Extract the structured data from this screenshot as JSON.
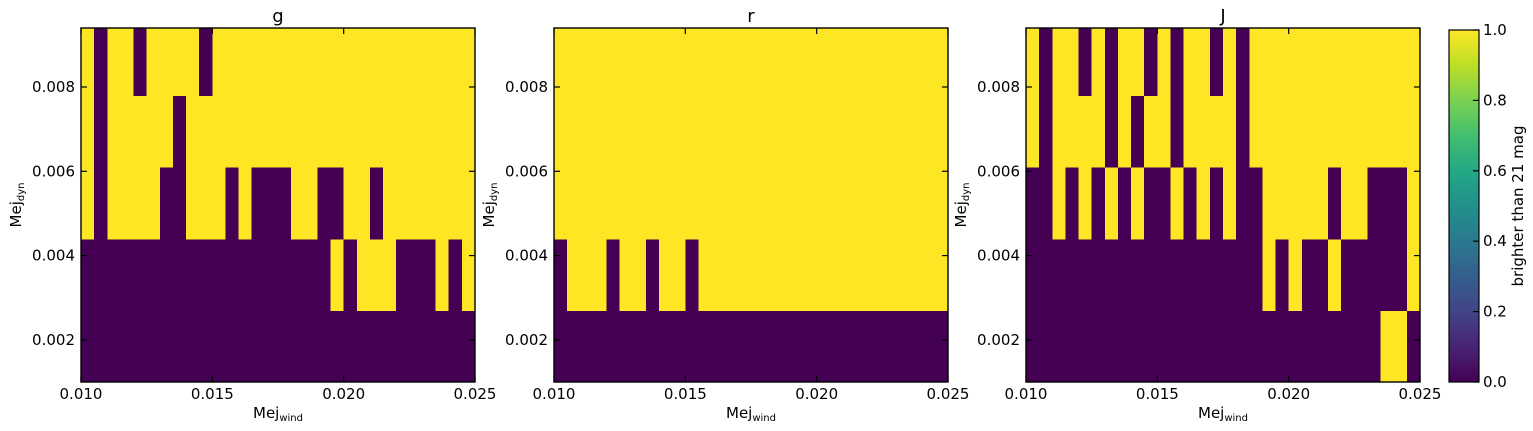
{
  "colors": {
    "zero": "#440154",
    "one": "#fde725"
  },
  "colorbar": {
    "label": "brighter than 21 mag",
    "ticks": [
      "0.0",
      "0.2",
      "0.4",
      "0.6",
      "0.8",
      "1.0"
    ],
    "range": [
      0,
      1
    ],
    "colormap": "viridis"
  },
  "chart_data": [
    {
      "type": "heatmap",
      "title": "g",
      "xlabel": "Mej",
      "xlabel_sub": "wind",
      "ylabel": "Mej",
      "ylabel_sub": "dyn",
      "xlim": [
        0.01,
        0.025
      ],
      "ylim": [
        0.001,
        0.0094
      ],
      "x_ticks": [
        "0.010",
        "0.015",
        "0.020",
        "0.025"
      ],
      "y_ticks": [
        "0.002",
        "0.004",
        "0.006",
        "0.008"
      ],
      "x_bins": 30,
      "row_y_edges": [
        0.001,
        0.0027,
        0.0044,
        0.0061,
        0.0078,
        0.0094
      ],
      "rows": [
        "000000000000000000000000000000",
        "000000000000000000010111000101",
        "101111001110100011001101111111",
        "101111101111111111111111111111",
        "101101111011111111111111111111"
      ]
    },
    {
      "type": "heatmap",
      "title": "r",
      "xlabel": "Mej",
      "xlabel_sub": "wind",
      "ylabel": "Mej",
      "ylabel_sub": "dyn",
      "xlim": [
        0.01,
        0.025
      ],
      "ylim": [
        0.001,
        0.0094
      ],
      "x_ticks": [
        "0.010",
        "0.015",
        "0.020",
        "0.025"
      ],
      "y_ticks": [
        "0.002",
        "0.004",
        "0.006",
        "0.008"
      ],
      "x_bins": 30,
      "row_y_edges": [
        0.001,
        0.0027,
        0.0044,
        0.0061,
        0.0078,
        0.0094
      ],
      "rows": [
        "000000000000000000000000000000",
        "011101101101111111111111111111",
        "111111111111111111111111111111",
        "111111111111111111111111111111",
        "111111111111111111111111111111"
      ]
    },
    {
      "type": "heatmap",
      "title": "J",
      "xlabel": "Mej",
      "xlabel_sub": "wind",
      "ylabel": "Mej",
      "ylabel_sub": "dyn",
      "xlim": [
        0.01,
        0.025
      ],
      "ylim": [
        0.001,
        0.0094
      ],
      "x_ticks": [
        "0.010",
        "0.015",
        "0.020",
        "0.025"
      ],
      "y_ticks": [
        "0.002",
        "0.004",
        "0.006",
        "0.008"
      ],
      "x_bins": 30,
      "row_y_edges": [
        0.001,
        0.0027,
        0.0044,
        0.0061,
        0.0078,
        0.0094
      ],
      "rows": [
        "000000000000000000000000000110",
        "000000000000000000101001000001",
        "001010101001010100111110110001",
        "101111010110111101111111111111",
        "101101011010110101111111111111"
      ]
    }
  ]
}
